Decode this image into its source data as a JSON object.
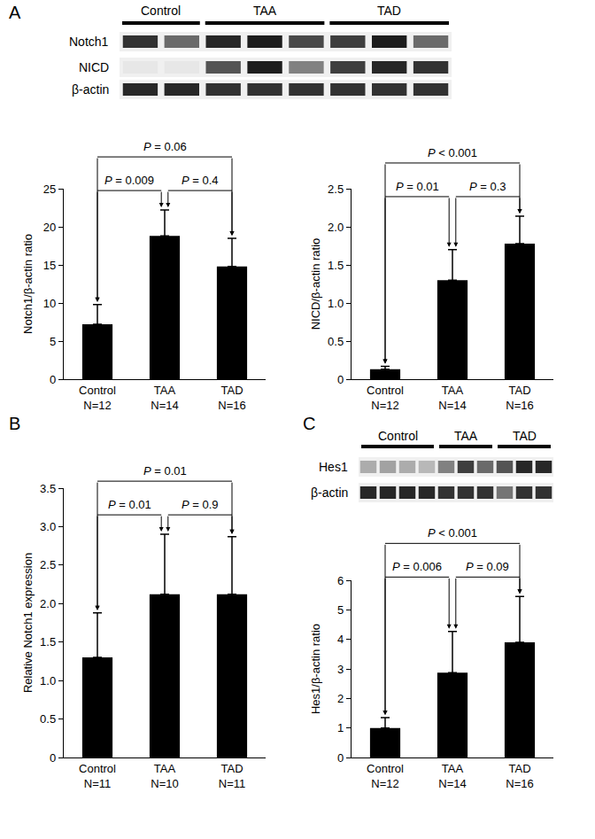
{
  "panel_labels": [
    "A",
    "B",
    "C"
  ],
  "blots": [
    {
      "groups": [
        {
          "label": "Control",
          "lanes": 2
        },
        {
          "label": "TAA",
          "lanes": 3
        },
        {
          "label": "TAD",
          "lanes": 3
        }
      ],
      "rows": [
        {
          "label": "Notch1",
          "intensity": [
            0.85,
            0.6,
            0.9,
            0.95,
            0.75,
            0.8,
            0.95,
            0.6
          ]
        },
        {
          "label": "NICD",
          "intensity": [
            0.04,
            0.04,
            0.7,
            0.95,
            0.5,
            0.8,
            0.9,
            0.85
          ]
        },
        {
          "label": "β-actin",
          "intensity": [
            0.9,
            0.9,
            0.85,
            0.85,
            0.85,
            0.85,
            0.85,
            0.85
          ]
        }
      ]
    },
    {
      "groups": [
        {
          "label": "Control",
          "lanes": 4
        },
        {
          "label": "TAA",
          "lanes": 3
        },
        {
          "label": "TAD",
          "lanes": 3
        }
      ],
      "rows": [
        {
          "label": "Hes1",
          "intensity": [
            0.3,
            0.35,
            0.3,
            0.25,
            0.5,
            0.8,
            0.6,
            0.7,
            0.9,
            0.9
          ]
        },
        {
          "label": "β-actin",
          "intensity": [
            0.9,
            0.9,
            0.9,
            0.9,
            0.85,
            0.85,
            0.85,
            0.55,
            0.85,
            0.85
          ]
        }
      ]
    }
  ],
  "chart_data": [
    {
      "type": "bar",
      "y_label": "Notch1/β-actin ratio",
      "categories": [
        "Control\nN=12",
        "TAA\nN=14",
        "TAD\nN=16"
      ],
      "values": [
        7.2,
        18.8,
        14.8
      ],
      "errors": [
        2.6,
        3.4,
        3.7
      ],
      "color": "#000000",
      "ylim": [
        0,
        25
      ],
      "yticks": [
        0,
        5,
        10,
        15,
        20,
        25
      ],
      "comparisons": [
        {
          "between": [
            "Control\nN=12",
            "TAA\nN=14"
          ],
          "text": "P = 0.009"
        },
        {
          "between": [
            "TAA\nN=14",
            "TAD\nN=16"
          ],
          "text": "P = 0.4"
        },
        {
          "between": [
            "Control\nN=12",
            "TAD\nN=16"
          ],
          "text": "P = 0.06"
        }
      ]
    },
    {
      "type": "bar",
      "y_label": "NICD/β-actin ratio",
      "categories": [
        "Control\nN=12",
        "TAA\nN=14",
        "TAD\nN=16"
      ],
      "values": [
        0.13,
        1.3,
        1.78
      ],
      "errors": [
        0.04,
        0.4,
        0.36
      ],
      "color": "#000000",
      "ylim": [
        0,
        2.5
      ],
      "yticks": [
        0,
        0.5,
        {
          "value": 1,
          "label": "1.0"
        },
        1.5,
        {
          "value": 2,
          "label": "2.0"
        },
        2.5
      ],
      "comparisons": [
        {
          "between": [
            "Control\nN=12",
            "TAA\nN=14"
          ],
          "text": "P = 0.01"
        },
        {
          "between": [
            "TAA\nN=14",
            "TAD\nN=16"
          ],
          "text": "P = 0.3"
        },
        {
          "between": [
            "Control\nN=12",
            "TAD\nN=16"
          ],
          "text": "P < 0.001"
        }
      ]
    },
    {
      "type": "bar",
      "y_label": "Relative Notch1 expression",
      "categories": [
        "Control\nN=11",
        "TAA\nN=10",
        "TAD\nN=11"
      ],
      "values": [
        1.3,
        2.12,
        2.12
      ],
      "errors": [
        0.58,
        0.78,
        0.75
      ],
      "color": "#000000",
      "ylim": [
        0,
        3.5
      ],
      "yticks": [
        0,
        0.5,
        {
          "value": 1,
          "label": "1.0"
        },
        1.5,
        {
          "value": 2,
          "label": "2.0"
        },
        2.5,
        {
          "value": 3,
          "label": "3.0"
        },
        3.5
      ],
      "comparisons": [
        {
          "between": [
            "Control\nN=11",
            "TAA\nN=10"
          ],
          "text": "P = 0.01"
        },
        {
          "between": [
            "TAA\nN=10",
            "TAD\nN=11"
          ],
          "text": "P = 0.9"
        },
        {
          "between": [
            "Control\nN=11",
            "TAD\nN=11"
          ],
          "text": "P = 0.01"
        }
      ]
    },
    {
      "type": "bar",
      "y_label": "Hes1/β-actin ratio",
      "categories": [
        "Control\nN=12",
        "TAA\nN=14",
        "TAD\nN=16"
      ],
      "values": [
        1.0,
        2.87,
        3.9
      ],
      "errors": [
        0.35,
        1.4,
        1.55
      ],
      "color": "#000000",
      "ylim": [
        0,
        6
      ],
      "yticks": [
        0,
        1,
        2,
        3,
        4,
        5,
        6
      ],
      "comparisons": [
        {
          "between": [
            "Control\nN=12",
            "TAA\nN=14"
          ],
          "text": "P = 0.006"
        },
        {
          "between": [
            "TAA\nN=14",
            "TAD\nN=16"
          ],
          "text": "P = 0.09"
        },
        {
          "between": [
            "Control\nN=12",
            "TAD\nN=16"
          ],
          "text": "P < 0.001"
        }
      ]
    }
  ]
}
